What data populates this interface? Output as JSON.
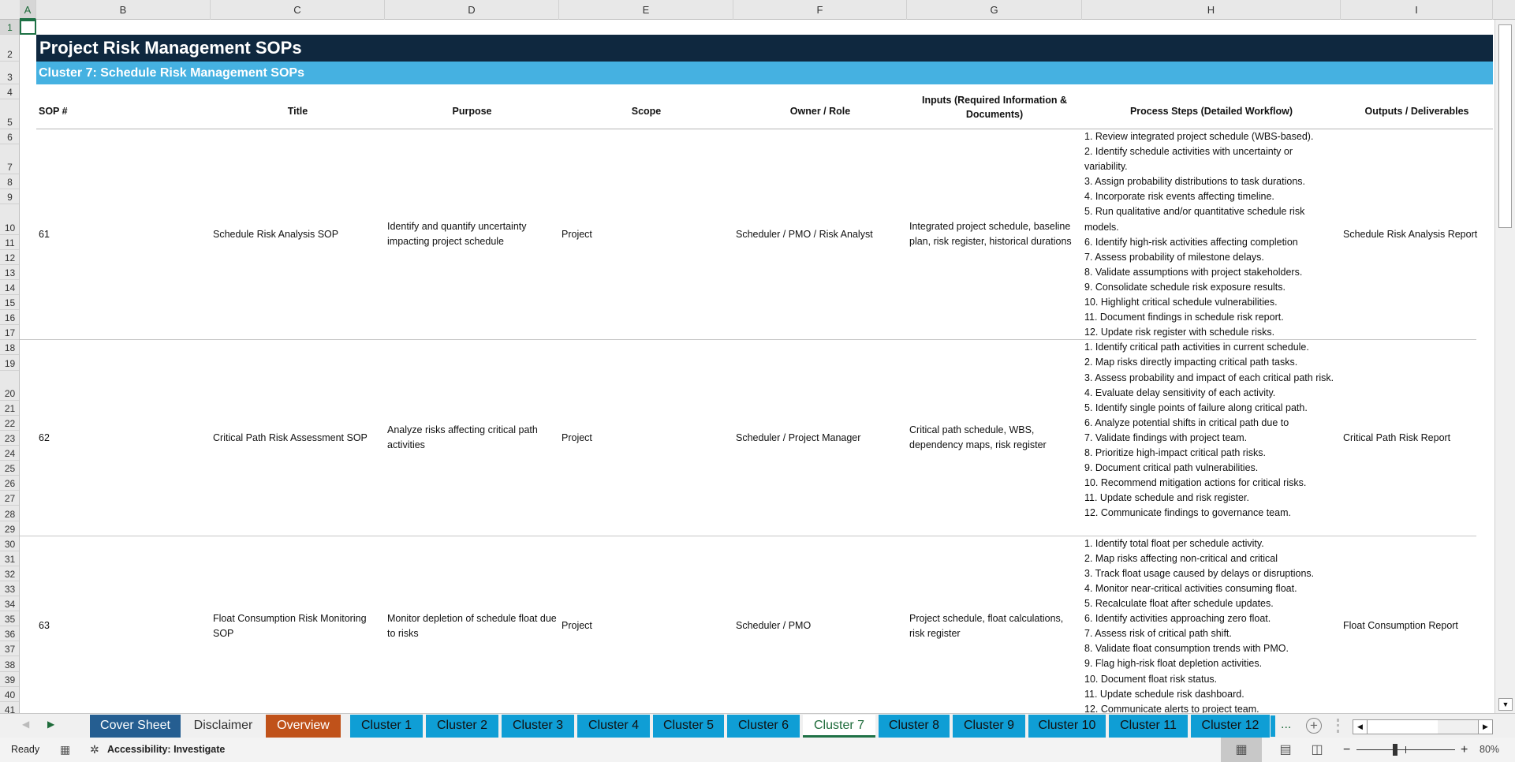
{
  "columns": [
    "A",
    "B",
    "C",
    "D",
    "E",
    "F",
    "G",
    "H",
    "I"
  ],
  "selected_cell": "A1",
  "sheet": {
    "title": "Project Risk Management SOPs",
    "subtitle": "Cluster 7: Schedule Risk Management SOPs",
    "headers": [
      "SOP #",
      "Title",
      "Purpose",
      "Scope",
      "Owner / Role",
      "Inputs (Required Information & Documents)",
      "Process Steps (Detailed Workflow)",
      "Outputs / Deliverables"
    ],
    "sops": [
      {
        "number": "61",
        "title": "Schedule Risk Analysis SOP",
        "purpose": "Identify and quantify uncertainty impacting project schedule",
        "scope": "Project",
        "owner": "Scheduler / PMO / Risk Analyst",
        "inputs": "Integrated project schedule, baseline plan, risk register, historical durations",
        "steps": [
          "1. Review integrated project schedule (WBS-based).",
          "2. Identify schedule activities with uncertainty or variability.",
          "3. Assign probability distributions to task durations.",
          "4. Incorporate risk events affecting timeline.",
          "5. Run qualitative and/or quantitative schedule risk models.",
          "6. Identify high-risk activities affecting completion",
          "7. Assess probability of milestone delays.",
          "8. Validate assumptions with project stakeholders.",
          "9. Consolidate schedule risk exposure results.",
          "10. Highlight critical schedule vulnerabilities.",
          "11. Document findings in schedule risk report.",
          "12. Update risk register with schedule risks."
        ],
        "outputs": "Schedule Risk Analysis Report"
      },
      {
        "number": "62",
        "title": "Critical Path Risk Assessment SOP",
        "purpose": "Analyze risks affecting critical path activities",
        "scope": "Project",
        "owner": "Scheduler / Project Manager",
        "inputs": "Critical path schedule, WBS, dependency maps, risk register",
        "steps": [
          "1. Identify critical path activities in current schedule.",
          "2. Map risks directly impacting critical path tasks.",
          "3. Assess probability and impact of each critical path risk.",
          "4. Evaluate delay sensitivity of each activity.",
          "5. Identify single points of failure along critical path.",
          "6. Analyze potential shifts in critical path due to",
          "7. Validate findings with project team.",
          "8. Prioritize high-impact critical path risks.",
          "9. Document critical path vulnerabilities.",
          "10. Recommend mitigation actions for critical risks.",
          "11. Update schedule and risk register.",
          "12. Communicate findings to governance team."
        ],
        "outputs": "Critical Path Risk Report"
      },
      {
        "number": "63",
        "title": "Float Consumption Risk Monitoring SOP",
        "purpose": "Monitor depletion of schedule float due to risks",
        "scope": "Project",
        "owner": "Scheduler / PMO",
        "inputs": "Project schedule, float calculations, risk register",
        "steps": [
          "1. Identify total float per schedule activity.",
          "2. Map risks affecting non-critical and critical",
          "3. Track float usage caused by delays or disruptions.",
          "4. Monitor near-critical activities consuming float.",
          "5. Recalculate float after schedule updates.",
          "6. Identify activities approaching zero float.",
          "7. Assess risk of critical path shift.",
          "8. Validate float consumption trends with PMO.",
          "9. Flag high-risk float depletion activities.",
          "10. Document float risk status.",
          "11. Update schedule risk dashboard.",
          "12. Communicate alerts to project team."
        ],
        "outputs": "Float Consumption Report"
      }
    ]
  },
  "tabs": [
    {
      "label": "Cover Sheet",
      "color": "#255e91",
      "text": "#ffffff"
    },
    {
      "label": "Disclaimer",
      "color": "#f0f0f0",
      "text": "#333333"
    },
    {
      "label": "Overview",
      "color": "#c0521a",
      "text": "#ffffff"
    },
    {
      "label": "Cluster 1",
      "color": "#0f9ed5",
      "text": "#111111"
    },
    {
      "label": "Cluster 2",
      "color": "#0f9ed5",
      "text": "#111111"
    },
    {
      "label": "Cluster 3",
      "color": "#0f9ed5",
      "text": "#111111"
    },
    {
      "label": "Cluster 4",
      "color": "#0f9ed5",
      "text": "#111111"
    },
    {
      "label": "Cluster 5",
      "color": "#0f9ed5",
      "text": "#111111"
    },
    {
      "label": "Cluster 6",
      "color": "#0f9ed5",
      "text": "#111111"
    },
    {
      "label": "Cluster 7",
      "color": "#ffffff",
      "text": "#1e6b3a",
      "active": true
    },
    {
      "label": "Cluster 8",
      "color": "#0f9ed5",
      "text": "#111111"
    },
    {
      "label": "Cluster 9",
      "color": "#0f9ed5",
      "text": "#111111"
    },
    {
      "label": "Cluster 10",
      "color": "#0f9ed5",
      "text": "#111111"
    },
    {
      "label": "Cluster 11",
      "color": "#0f9ed5",
      "text": "#111111"
    },
    {
      "label": "Cluster 12",
      "color": "#0f9ed5",
      "text": "#111111"
    }
  ],
  "tabbar": {
    "more": "...",
    "add_icon": "plus-circle-icon"
  },
  "status": {
    "ready": "Ready",
    "accessibility": "Accessibility: Investigate",
    "zoom": "80%",
    "zoom_percent": 80,
    "view": "normal"
  },
  "colors": {
    "title_bg": "#0f283f",
    "subtitle_bg": "#45b1e1",
    "tab_blue": "#0f9ed5",
    "excel_green": "#1e7145"
  }
}
